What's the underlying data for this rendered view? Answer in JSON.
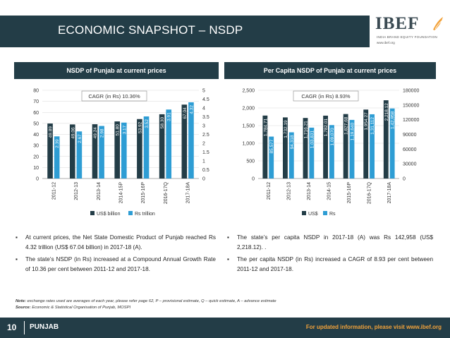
{
  "header": {
    "title": "ECONOMIC SNAPSHOT – NSDP"
  },
  "logo": {
    "text": "IBEF",
    "subtitle": "INDIA BRAND EQUITY FOUNDATION",
    "url": "www.ibef.org"
  },
  "panels": {
    "left_title": "NSDP of Punjab at current prices",
    "right_title": "Per Capita NSDP of Punjab at current prices"
  },
  "colors": {
    "header_bg": "#233d47",
    "series_dark": "#233d47",
    "series_light": "#2e9dd4",
    "footer_link": "#f2a23a"
  },
  "chart_data": [
    {
      "type": "bar",
      "title": "",
      "annotation": "CAGR (in Rs) 10.36%",
      "categories": [
        "2011-12",
        "2012-13",
        "2013-14",
        "2014-15P",
        "2015-16P",
        "2016-17Q",
        "2017-18A"
      ],
      "series": [
        {
          "name": "US$ billion",
          "axis": "left",
          "values": [
            49.89,
            49.06,
            49.24,
            51.8,
            53.92,
            58.3,
            67.04
          ],
          "labels": [
            "49.89",
            "49.06",
            "49.24",
            "51.80",
            "53.92",
            "58.30",
            "67.04"
          ]
        },
        {
          "name": "Rs trillion",
          "axis": "right",
          "values": [
            2.39,
            2.67,
            2.98,
            3.17,
            3.52,
            3.91,
            4.32
          ],
          "labels": [
            "2.39",
            "2.67",
            "2.98",
            "3.17",
            "3.52",
            "3.91",
            "4.32"
          ]
        }
      ],
      "left_axis": {
        "min": 0,
        "max": 80,
        "ticks": [
          "0",
          "10",
          "20",
          "30",
          "40",
          "50",
          "60",
          "70",
          "80"
        ]
      },
      "right_axis": {
        "min": 0,
        "max": 5,
        "ticks": [
          "0",
          "0.5",
          "1",
          "1.5",
          "2",
          "2.5",
          "3",
          "3.5",
          "4",
          "4.5",
          "5"
        ]
      },
      "grid": true,
      "legend_position": "bottom"
    },
    {
      "type": "bar",
      "title": "",
      "annotation": "CAGR (in Rs) 8.93%",
      "categories": [
        "2011-12",
        "2012-13",
        "2013-14",
        "2014-15",
        "2015-16P",
        "2016-17Q",
        "2017-18A"
      ],
      "series": [
        {
          "name": "US$",
          "axis": "left",
          "values": [
            1784.71,
            1732.19,
            1716.21,
            1782.01,
            1827.68,
            1954.27,
            2218.12
          ],
          "labels": [
            "1,784.71",
            "1,732.19",
            "1,716.21",
            "1,782.01",
            "1,827.68",
            "1,954.27",
            "2,218.12"
          ]
        },
        {
          "name": "Rs",
          "axis": "right",
          "values": [
            85577,
            94318,
            103831,
            109070,
            119640,
            131112,
            142958
          ],
          "labels": [
            "85,577",
            "94,318",
            "1,03,831",
            "1,09,070",
            "1,19,640",
            "1,31,112",
            "1,42,958"
          ]
        }
      ],
      "left_axis": {
        "min": 0,
        "max": 2500,
        "ticks": [
          "0",
          "500",
          "1,000",
          "1,500",
          "2,000",
          "2,500"
        ]
      },
      "right_axis": {
        "min": 0,
        "max": 180000,
        "ticks": [
          "0",
          "30000",
          "60000",
          "90000",
          "120000",
          "150000",
          "180000"
        ]
      },
      "grid": true,
      "legend_position": "bottom"
    }
  ],
  "bullets_left": [
    "At current prices, the Net State Domestic Product of Punjab reached Rs 4.32 trillion (US$ 67.04 billion) in 2017-18 (A).",
    "The state’s NSDP (in Rs) increased at a Compound Annual Growth Rate of 10.36 per cent between 2011-12 and 2017-18."
  ],
  "bullets_right": [
    "The state’s per capita NSDP in 2017-18 (A) was Rs 142,958 (US$ 2,218.12).                .",
    "The per capita NSDP (in Rs) increased a CAGR of 8.93 per cent between 2011-12 and 2017-18."
  ],
  "bullet_mark": "▪",
  "note": {
    "label": "Note:",
    "text": "exchange rates used are averages of each year, please refer page 62, P – provisional estimate, Q – quick estimate, A – advance estimate"
  },
  "source": {
    "label": "Source:",
    "text": "Economic & Statistical Organisation of Punjab, MOSPI"
  },
  "footer": {
    "page": "10",
    "state": "PUNJAB",
    "link_text": "For updated information, please visit www.ibef.org"
  }
}
